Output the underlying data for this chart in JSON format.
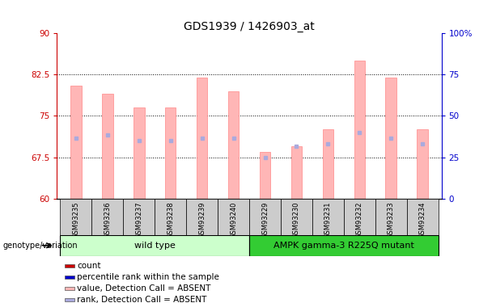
{
  "title": "GDS1939 / 1426903_at",
  "samples": [
    "GSM93235",
    "GSM93236",
    "GSM93237",
    "GSM93238",
    "GSM93239",
    "GSM93240",
    "GSM93229",
    "GSM93230",
    "GSM93231",
    "GSM93232",
    "GSM93233",
    "GSM93234"
  ],
  "bar_tops": [
    80.5,
    79.0,
    76.5,
    76.5,
    82.0,
    79.5,
    68.5,
    69.5,
    72.5,
    85.0,
    82.0,
    72.5
  ],
  "blue_dots": [
    71.0,
    71.5,
    70.5,
    70.5,
    71.0,
    71.0,
    67.5,
    69.5,
    70.0,
    72.0,
    71.0,
    70.0
  ],
  "ylim_left": [
    60,
    90
  ],
  "yticks_left": [
    60,
    67.5,
    75,
    82.5,
    90
  ],
  "ytick_labels_left": [
    "60",
    "67.5",
    "75",
    "82.5",
    "90"
  ],
  "ylim_right": [
    0,
    100
  ],
  "yticks_right": [
    0,
    25,
    50,
    75,
    100
  ],
  "ytick_labels_right": [
    "0",
    "25",
    "50",
    "75",
    "100%"
  ],
  "bar_color": "#FFB6B6",
  "bar_edge_color": "#FF8888",
  "dot_color_blue_light": "#AAAADD",
  "bar_bottom": 60,
  "wild_type_indices": [
    0,
    1,
    2,
    3,
    4,
    5
  ],
  "mutant_indices": [
    6,
    7,
    8,
    9,
    10,
    11
  ],
  "wild_type_label": "wild type",
  "mutant_label": "AMPK gamma-3 R225Q mutant",
  "genotype_label": "genotype/variation",
  "wild_type_bg": "#CCFFCC",
  "mutant_bg": "#33CC33",
  "sample_bg": "#CCCCCC",
  "legend_items": [
    "count",
    "percentile rank within the sample",
    "value, Detection Call = ABSENT",
    "rank, Detection Call = ABSENT"
  ],
  "legend_colors": [
    "#CC0000",
    "#0000CC",
    "#FFB6B6",
    "#AAAADD"
  ],
  "grid_lines": [
    67.5,
    75,
    82.5
  ],
  "left_axis_color": "#CC0000",
  "right_axis_color": "#0000CC"
}
